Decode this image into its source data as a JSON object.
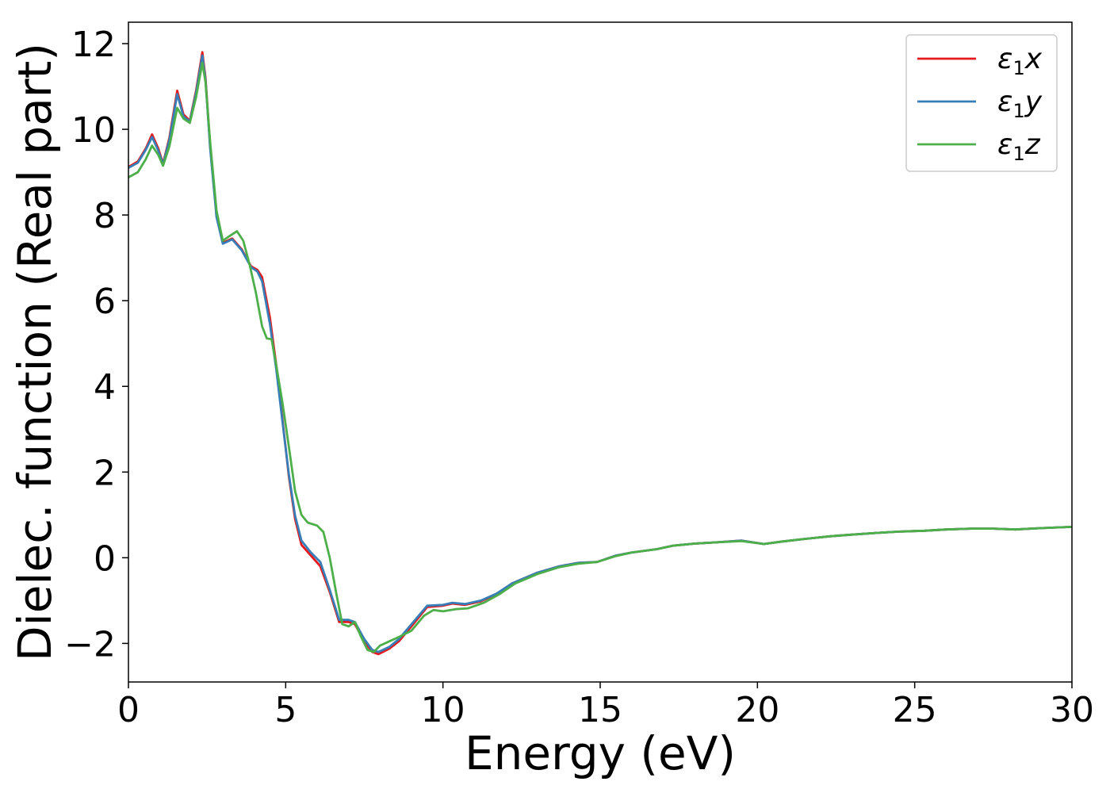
{
  "chart_data": {
    "type": "line",
    "xlabel": "Energy (eV)",
    "ylabel": "Dielec. function (Real part)",
    "xlim": [
      0,
      30
    ],
    "ylim": [
      -2.9,
      12.5
    ],
    "xticks": [
      0,
      5,
      10,
      15,
      20,
      25,
      30
    ],
    "xtick_labels": [
      "0",
      "5",
      "10",
      "15",
      "20",
      "25",
      "30"
    ],
    "yticks": [
      -2,
      0,
      2,
      4,
      6,
      8,
      10,
      12
    ],
    "ytick_labels": [
      "−2",
      "0",
      "2",
      "4",
      "6",
      "8",
      "10",
      "12"
    ],
    "grid": false,
    "legend_position": "top-right",
    "series": [
      {
        "name": "ε₁x",
        "legend_base": "ε",
        "legend_sub": "1",
        "legend_var": "x",
        "color": "#e41a1c",
        "points": [
          [
            0,
            9.12
          ],
          [
            0.3,
            9.25
          ],
          [
            0.55,
            9.55
          ],
          [
            0.75,
            9.88
          ],
          [
            0.95,
            9.55
          ],
          [
            1.1,
            9.2
          ],
          [
            1.3,
            9.8
          ],
          [
            1.55,
            10.9
          ],
          [
            1.75,
            10.35
          ],
          [
            1.95,
            10.2
          ],
          [
            2.15,
            10.9
          ],
          [
            2.35,
            11.8
          ],
          [
            2.45,
            11.2
          ],
          [
            2.6,
            9.6
          ],
          [
            2.8,
            8.0
          ],
          [
            3.0,
            7.35
          ],
          [
            3.3,
            7.45
          ],
          [
            3.6,
            7.2
          ],
          [
            3.9,
            6.8
          ],
          [
            4.1,
            6.72
          ],
          [
            4.25,
            6.55
          ],
          [
            4.5,
            5.6
          ],
          [
            4.7,
            4.5
          ],
          [
            4.9,
            3.2
          ],
          [
            5.1,
            1.9
          ],
          [
            5.3,
            0.9
          ],
          [
            5.5,
            0.3
          ],
          [
            5.8,
            0.05
          ],
          [
            6.1,
            -0.2
          ],
          [
            6.4,
            -0.8
          ],
          [
            6.7,
            -1.5
          ],
          [
            7.0,
            -1.5
          ],
          [
            7.2,
            -1.55
          ],
          [
            7.5,
            -1.95
          ],
          [
            7.75,
            -2.2
          ],
          [
            7.95,
            -2.25
          ],
          [
            8.3,
            -2.12
          ],
          [
            8.6,
            -1.95
          ],
          [
            9.0,
            -1.6
          ],
          [
            9.5,
            -1.15
          ],
          [
            10.0,
            -1.12
          ],
          [
            10.3,
            -1.07
          ],
          [
            10.7,
            -1.1
          ],
          [
            11.2,
            -1.02
          ],
          [
            11.7,
            -0.85
          ],
          [
            12.2,
            -0.6
          ],
          [
            13.0,
            -0.35
          ],
          [
            13.7,
            -0.2
          ],
          [
            14.3,
            -0.12
          ],
          [
            14.9,
            -0.1
          ],
          [
            15.5,
            0.05
          ],
          [
            16.0,
            0.12
          ],
          [
            16.8,
            0.2
          ],
          [
            17.3,
            0.28
          ],
          [
            18.0,
            0.33
          ],
          [
            18.7,
            0.36
          ],
          [
            19.5,
            0.4
          ],
          [
            20.2,
            0.32
          ],
          [
            20.8,
            0.38
          ],
          [
            21.5,
            0.44
          ],
          [
            22.3,
            0.5
          ],
          [
            23.0,
            0.54
          ],
          [
            23.8,
            0.58
          ],
          [
            24.5,
            0.61
          ],
          [
            25.3,
            0.63
          ],
          [
            26.0,
            0.66
          ],
          [
            26.8,
            0.68
          ],
          [
            27.5,
            0.68
          ],
          [
            28.2,
            0.66
          ],
          [
            29.0,
            0.69
          ],
          [
            30.0,
            0.72
          ]
        ]
      },
      {
        "name": "ε₁y",
        "legend_base": "ε",
        "legend_sub": "1",
        "legend_var": "y",
        "color": "#377eb8",
        "points": [
          [
            0,
            9.1
          ],
          [
            0.3,
            9.22
          ],
          [
            0.55,
            9.52
          ],
          [
            0.75,
            9.82
          ],
          [
            0.95,
            9.5
          ],
          [
            1.1,
            9.18
          ],
          [
            1.3,
            9.75
          ],
          [
            1.55,
            10.82
          ],
          [
            1.75,
            10.3
          ],
          [
            1.95,
            10.18
          ],
          [
            2.15,
            10.85
          ],
          [
            2.35,
            11.72
          ],
          [
            2.45,
            11.15
          ],
          [
            2.6,
            9.55
          ],
          [
            2.8,
            7.95
          ],
          [
            3.0,
            7.33
          ],
          [
            3.3,
            7.43
          ],
          [
            3.6,
            7.18
          ],
          [
            3.9,
            6.78
          ],
          [
            4.1,
            6.68
          ],
          [
            4.25,
            6.45
          ],
          [
            4.5,
            5.45
          ],
          [
            4.7,
            4.4
          ],
          [
            4.9,
            3.15
          ],
          [
            5.1,
            1.95
          ],
          [
            5.3,
            0.98
          ],
          [
            5.5,
            0.4
          ],
          [
            5.8,
            0.12
          ],
          [
            6.1,
            -0.1
          ],
          [
            6.4,
            -0.75
          ],
          [
            6.7,
            -1.45
          ],
          [
            7.0,
            -1.45
          ],
          [
            7.2,
            -1.5
          ],
          [
            7.5,
            -1.9
          ],
          [
            7.75,
            -2.15
          ],
          [
            7.95,
            -2.2
          ],
          [
            8.3,
            -2.08
          ],
          [
            8.6,
            -1.9
          ],
          [
            9.0,
            -1.55
          ],
          [
            9.5,
            -1.12
          ],
          [
            10.0,
            -1.1
          ],
          [
            10.3,
            -1.05
          ],
          [
            10.7,
            -1.08
          ],
          [
            11.2,
            -1.0
          ],
          [
            11.7,
            -0.84
          ],
          [
            12.2,
            -0.6
          ],
          [
            13.0,
            -0.35
          ],
          [
            13.7,
            -0.2
          ],
          [
            14.3,
            -0.12
          ],
          [
            14.9,
            -0.1
          ],
          [
            15.5,
            0.05
          ],
          [
            16.0,
            0.12
          ],
          [
            16.8,
            0.2
          ],
          [
            17.3,
            0.28
          ],
          [
            18.0,
            0.33
          ],
          [
            18.7,
            0.36
          ],
          [
            19.5,
            0.4
          ],
          [
            20.2,
            0.32
          ],
          [
            20.8,
            0.38
          ],
          [
            21.5,
            0.44
          ],
          [
            22.3,
            0.5
          ],
          [
            23.0,
            0.54
          ],
          [
            23.8,
            0.58
          ],
          [
            24.5,
            0.61
          ],
          [
            25.3,
            0.63
          ],
          [
            26.0,
            0.66
          ],
          [
            26.8,
            0.68
          ],
          [
            27.5,
            0.68
          ],
          [
            28.2,
            0.66
          ],
          [
            29.0,
            0.69
          ],
          [
            30.0,
            0.72
          ]
        ]
      },
      {
        "name": "ε₁z",
        "legend_base": "ε",
        "legend_sub": "1",
        "legend_var": "z",
        "color": "#4daf4a",
        "points": [
          [
            0,
            8.88
          ],
          [
            0.3,
            9.0
          ],
          [
            0.55,
            9.3
          ],
          [
            0.75,
            9.62
          ],
          [
            0.95,
            9.4
          ],
          [
            1.1,
            9.15
          ],
          [
            1.3,
            9.6
          ],
          [
            1.55,
            10.5
          ],
          [
            1.75,
            10.25
          ],
          [
            1.95,
            10.15
          ],
          [
            2.15,
            10.75
          ],
          [
            2.35,
            11.55
          ],
          [
            2.45,
            11.1
          ],
          [
            2.6,
            9.7
          ],
          [
            2.8,
            8.1
          ],
          [
            3.0,
            7.4
          ],
          [
            3.2,
            7.5
          ],
          [
            3.45,
            7.62
          ],
          [
            3.65,
            7.4
          ],
          [
            3.85,
            6.85
          ],
          [
            4.05,
            6.2
          ],
          [
            4.25,
            5.4
          ],
          [
            4.4,
            5.12
          ],
          [
            4.55,
            5.1
          ],
          [
            4.7,
            4.5
          ],
          [
            4.9,
            3.6
          ],
          [
            5.1,
            2.6
          ],
          [
            5.3,
            1.55
          ],
          [
            5.5,
            1.0
          ],
          [
            5.7,
            0.82
          ],
          [
            6.0,
            0.75
          ],
          [
            6.2,
            0.6
          ],
          [
            6.4,
            0.0
          ],
          [
            6.6,
            -0.8
          ],
          [
            6.8,
            -1.55
          ],
          [
            7.0,
            -1.6
          ],
          [
            7.2,
            -1.5
          ],
          [
            7.4,
            -1.85
          ],
          [
            7.6,
            -2.15
          ],
          [
            7.8,
            -2.2
          ],
          [
            8.0,
            -2.05
          ],
          [
            8.3,
            -1.95
          ],
          [
            8.6,
            -1.85
          ],
          [
            9.0,
            -1.7
          ],
          [
            9.4,
            -1.35
          ],
          [
            9.7,
            -1.22
          ],
          [
            10.0,
            -1.25
          ],
          [
            10.4,
            -1.2
          ],
          [
            10.8,
            -1.18
          ],
          [
            11.3,
            -1.05
          ],
          [
            11.8,
            -0.85
          ],
          [
            12.3,
            -0.6
          ],
          [
            13.0,
            -0.38
          ],
          [
            13.7,
            -0.22
          ],
          [
            14.3,
            -0.14
          ],
          [
            14.9,
            -0.1
          ],
          [
            15.5,
            0.04
          ],
          [
            16.0,
            0.12
          ],
          [
            16.8,
            0.2
          ],
          [
            17.3,
            0.28
          ],
          [
            18.0,
            0.33
          ],
          [
            18.7,
            0.36
          ],
          [
            19.5,
            0.39
          ],
          [
            20.2,
            0.32
          ],
          [
            20.8,
            0.38
          ],
          [
            21.5,
            0.44
          ],
          [
            22.3,
            0.5
          ],
          [
            23.0,
            0.54
          ],
          [
            23.8,
            0.58
          ],
          [
            24.5,
            0.61
          ],
          [
            25.3,
            0.63
          ],
          [
            26.0,
            0.66
          ],
          [
            26.8,
            0.68
          ],
          [
            27.5,
            0.68
          ],
          [
            28.2,
            0.66
          ],
          [
            29.0,
            0.69
          ],
          [
            30.0,
            0.72
          ]
        ]
      }
    ]
  }
}
